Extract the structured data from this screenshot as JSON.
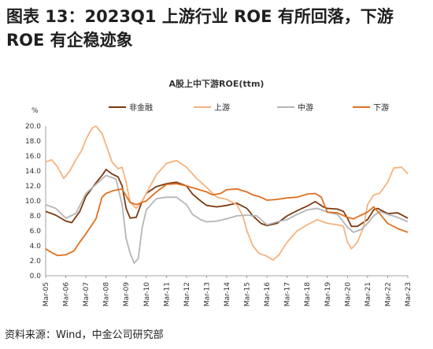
{
  "figure": {
    "title": "图表 13：2023Q1 上游行业 ROE 有所回落，下游 ROE 有企稳迹象",
    "source": "资料来源：Wind，中金公司研究部"
  },
  "chart_data": {
    "type": "line",
    "title": "A股上中下游ROE(ttm)",
    "ylabel_unit": "%",
    "ylim": [
      0,
      20
    ],
    "yticks": [
      "0.0",
      "2.0",
      "4.0",
      "6.0",
      "8.0",
      "10.0",
      "12.0",
      "14.0",
      "16.0",
      "18.0",
      "20.0"
    ],
    "xlim": [
      2005,
      2023
    ],
    "xticks": [
      "Mar-05",
      "Mar-06",
      "Mar-07",
      "Mar-08",
      "Mar-09",
      "Mar-10",
      "Mar-11",
      "Mar-12",
      "Mar-13",
      "Mar-14",
      "Mar-15",
      "Mar-16",
      "Mar-17",
      "Mar-18",
      "Mar-19",
      "Mar-20",
      "Mar-21",
      "Mar-22",
      "Mar-23"
    ],
    "legend_position": "top",
    "grid": false,
    "series": [
      {
        "name": "非金融",
        "color": "#7a3a10",
        "points": [
          [
            2005,
            8.6
          ],
          [
            2005.5,
            8.1
          ],
          [
            2006,
            7.3
          ],
          [
            2006.3,
            7.1
          ],
          [
            2006.7,
            8.6
          ],
          [
            2007,
            10.6
          ],
          [
            2007.5,
            12.4
          ],
          [
            2007.8,
            13.4
          ],
          [
            2008,
            14.2
          ],
          [
            2008.3,
            13.6
          ],
          [
            2008.6,
            13.2
          ],
          [
            2008.8,
            12.0
          ],
          [
            2009,
            9.0
          ],
          [
            2009.2,
            7.7
          ],
          [
            2009.5,
            7.8
          ],
          [
            2009.8,
            10.0
          ],
          [
            2010,
            11.0
          ],
          [
            2010.5,
            11.9
          ],
          [
            2011,
            12.3
          ],
          [
            2011.5,
            12.5
          ],
          [
            2012,
            12.0
          ],
          [
            2012.3,
            10.9
          ],
          [
            2012.7,
            10.0
          ],
          [
            2013,
            9.4
          ],
          [
            2013.5,
            9.2
          ],
          [
            2014,
            9.4
          ],
          [
            2014.5,
            9.7
          ],
          [
            2015,
            9.0
          ],
          [
            2015.3,
            8.0
          ],
          [
            2015.7,
            7.0
          ],
          [
            2016,
            6.7
          ],
          [
            2016.5,
            7.0
          ],
          [
            2017,
            8.0
          ],
          [
            2017.5,
            8.7
          ],
          [
            2018,
            9.3
          ],
          [
            2018.4,
            9.9
          ],
          [
            2018.8,
            9.2
          ],
          [
            2019,
            9.0
          ],
          [
            2019.5,
            8.9
          ],
          [
            2019.8,
            8.6
          ],
          [
            2020,
            7.7
          ],
          [
            2020.2,
            6.6
          ],
          [
            2020.5,
            6.6
          ],
          [
            2021,
            7.5
          ],
          [
            2021.3,
            8.8
          ],
          [
            2021.5,
            9.0
          ],
          [
            2022,
            8.3
          ],
          [
            2022.5,
            8.4
          ],
          [
            2023,
            7.7
          ]
        ]
      },
      {
        "name": "上游",
        "color": "#f7b27e",
        "points": [
          [
            2005,
            15.2
          ],
          [
            2005.3,
            15.5
          ],
          [
            2005.6,
            14.5
          ],
          [
            2005.9,
            13.0
          ],
          [
            2006.2,
            14.0
          ],
          [
            2006.5,
            15.5
          ],
          [
            2006.8,
            16.8
          ],
          [
            2007,
            18.2
          ],
          [
            2007.3,
            19.7
          ],
          [
            2007.5,
            20.0
          ],
          [
            2007.8,
            19.0
          ],
          [
            2008,
            17.5
          ],
          [
            2008.3,
            15.2
          ],
          [
            2008.6,
            14.3
          ],
          [
            2008.8,
            14.5
          ],
          [
            2009,
            12.5
          ],
          [
            2009.2,
            9.8
          ],
          [
            2009.5,
            9.0
          ],
          [
            2009.8,
            10.0
          ],
          [
            2010,
            11.0
          ],
          [
            2010.5,
            13.5
          ],
          [
            2011,
            15.0
          ],
          [
            2011.5,
            15.4
          ],
          [
            2012,
            14.5
          ],
          [
            2012.5,
            13.0
          ],
          [
            2013,
            11.8
          ],
          [
            2013.5,
            10.5
          ],
          [
            2014,
            10.2
          ],
          [
            2014.5,
            9.5
          ],
          [
            2014.8,
            8.0
          ],
          [
            2015,
            6.0
          ],
          [
            2015.3,
            4.0
          ],
          [
            2015.6,
            3.0
          ],
          [
            2016,
            2.6
          ],
          [
            2016.3,
            2.1
          ],
          [
            2016.6,
            2.8
          ],
          [
            2017,
            4.5
          ],
          [
            2017.5,
            6.0
          ],
          [
            2018,
            6.8
          ],
          [
            2018.5,
            7.5
          ],
          [
            2019,
            7.0
          ],
          [
            2019.5,
            6.8
          ],
          [
            2019.8,
            6.6
          ],
          [
            2020,
            4.5
          ],
          [
            2020.2,
            3.6
          ],
          [
            2020.5,
            4.5
          ],
          [
            2020.8,
            6.5
          ],
          [
            2021,
            9.5
          ],
          [
            2021.3,
            10.8
          ],
          [
            2021.6,
            11.0
          ],
          [
            2022,
            12.5
          ],
          [
            2022.3,
            14.4
          ],
          [
            2022.7,
            14.5
          ],
          [
            2023,
            13.6
          ]
        ]
      },
      {
        "name": "中游",
        "color": "#b5b5b5",
        "points": [
          [
            2005,
            9.5
          ],
          [
            2005.5,
            9.0
          ],
          [
            2006,
            7.7
          ],
          [
            2006.5,
            8.3
          ],
          [
            2007,
            11.0
          ],
          [
            2007.5,
            12.2
          ],
          [
            2008,
            13.4
          ],
          [
            2008.5,
            12.9
          ],
          [
            2008.8,
            9.5
          ],
          [
            2009,
            5.0
          ],
          [
            2009.2,
            3.0
          ],
          [
            2009.4,
            1.7
          ],
          [
            2009.6,
            2.3
          ],
          [
            2009.8,
            6.5
          ],
          [
            2010,
            8.8
          ],
          [
            2010.5,
            10.3
          ],
          [
            2011,
            10.5
          ],
          [
            2011.5,
            10.5
          ],
          [
            2012,
            9.5
          ],
          [
            2012.3,
            8.2
          ],
          [
            2012.7,
            7.5
          ],
          [
            2013,
            7.2
          ],
          [
            2013.5,
            7.3
          ],
          [
            2014,
            7.6
          ],
          [
            2014.5,
            8.0
          ],
          [
            2015,
            8.1
          ],
          [
            2015.5,
            8.0
          ],
          [
            2016,
            6.8
          ],
          [
            2016.5,
            7.2
          ],
          [
            2017,
            7.5
          ],
          [
            2017.5,
            8.2
          ],
          [
            2018,
            8.8
          ],
          [
            2018.5,
            9.0
          ],
          [
            2019,
            8.5
          ],
          [
            2019.5,
            8.2
          ],
          [
            2020,
            6.5
          ],
          [
            2020.3,
            5.8
          ],
          [
            2020.7,
            6.2
          ],
          [
            2021,
            7.0
          ],
          [
            2021.3,
            8.0
          ],
          [
            2021.6,
            8.6
          ],
          [
            2022,
            8.2
          ],
          [
            2022.5,
            7.8
          ],
          [
            2023,
            7.2
          ]
        ]
      },
      {
        "name": "下游",
        "color": "#e07020",
        "points": [
          [
            2005,
            3.6
          ],
          [
            2005.3,
            3.1
          ],
          [
            2005.6,
            2.7
          ],
          [
            2006,
            2.8
          ],
          [
            2006.4,
            3.3
          ],
          [
            2006.7,
            4.5
          ],
          [
            2007,
            5.6
          ],
          [
            2007.5,
            7.6
          ],
          [
            2007.8,
            10.5
          ],
          [
            2008,
            11.0
          ],
          [
            2008.4,
            11.4
          ],
          [
            2008.8,
            11.6
          ],
          [
            2009,
            10.7
          ],
          [
            2009.2,
            9.8
          ],
          [
            2009.5,
            9.5
          ],
          [
            2010,
            10.0
          ],
          [
            2010.5,
            11.2
          ],
          [
            2011,
            12.2
          ],
          [
            2011.5,
            12.3
          ],
          [
            2012,
            12.0
          ],
          [
            2012.5,
            11.6
          ],
          [
            2013,
            11.2
          ],
          [
            2013.3,
            10.8
          ],
          [
            2013.7,
            11.0
          ],
          [
            2014,
            11.5
          ],
          [
            2014.5,
            11.6
          ],
          [
            2015,
            11.2
          ],
          [
            2015.3,
            10.8
          ],
          [
            2015.7,
            10.5
          ],
          [
            2016,
            10.1
          ],
          [
            2016.5,
            10.2
          ],
          [
            2017,
            10.4
          ],
          [
            2017.5,
            10.5
          ],
          [
            2018,
            10.9
          ],
          [
            2018.4,
            11.0
          ],
          [
            2018.7,
            10.5
          ],
          [
            2019,
            8.5
          ],
          [
            2019.5,
            8.4
          ],
          [
            2020,
            7.8
          ],
          [
            2020.3,
            7.6
          ],
          [
            2020.6,
            8.0
          ],
          [
            2021,
            8.5
          ],
          [
            2021.3,
            9.2
          ],
          [
            2021.6,
            8.3
          ],
          [
            2022,
            7.0
          ],
          [
            2022.5,
            6.3
          ],
          [
            2023,
            5.8
          ]
        ]
      }
    ]
  }
}
